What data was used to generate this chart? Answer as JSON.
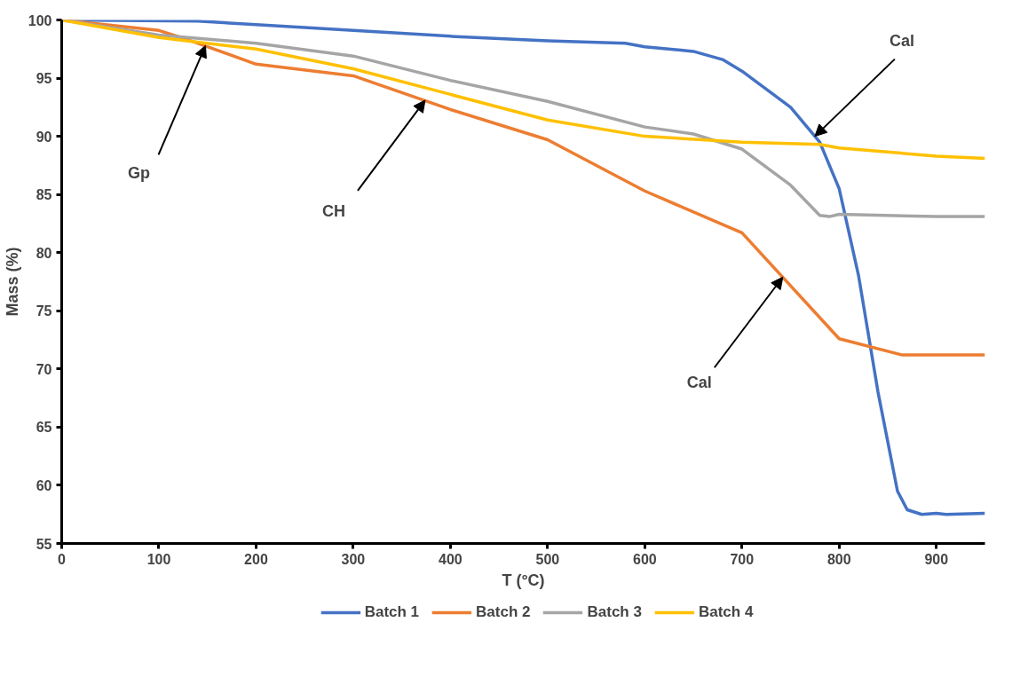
{
  "chart_data": {
    "type": "line",
    "xlabel": "T (°C)",
    "ylabel": "Mass (%)",
    "xlim": [
      0,
      950
    ],
    "ylim": [
      55,
      100
    ],
    "xticks": [
      0,
      100,
      200,
      300,
      400,
      500,
      600,
      700,
      800,
      900
    ],
    "yticks": [
      55,
      60,
      65,
      70,
      75,
      80,
      85,
      90,
      95,
      100
    ],
    "grid": false,
    "legend": "bottom",
    "line_style": "solid",
    "marker": "none",
    "series": [
      {
        "name": "Batch 1",
        "color": "#4472c4",
        "x": [
          0,
          140,
          200,
          300,
          400,
          500,
          580,
          600,
          650,
          680,
          700,
          750,
          780,
          800,
          820,
          840,
          860,
          870,
          885,
          900,
          910,
          950
        ],
        "values": [
          100,
          99.9,
          99.6,
          99.1,
          98.6,
          98.2,
          98.0,
          97.7,
          97.3,
          96.6,
          95.6,
          92.5,
          89.5,
          85.5,
          78,
          68,
          59.5,
          57.9,
          57.5,
          57.6,
          57.5,
          57.6
        ]
      },
      {
        "name": "Batch 2",
        "color": "#ed7d31",
        "x": [
          0,
          100,
          130,
          200,
          300,
          400,
          500,
          600,
          700,
          800,
          865,
          950
        ],
        "values": [
          100,
          99.1,
          98.3,
          96.2,
          95.2,
          92.3,
          89.7,
          85.3,
          81.7,
          72.6,
          71.2,
          71.2
        ]
      },
      {
        "name": "Batch 3",
        "color": "#a5a5a5",
        "x": [
          0,
          100,
          200,
          300,
          400,
          500,
          600,
          650,
          700,
          750,
          780,
          790,
          800,
          900,
          950
        ],
        "values": [
          100,
          98.7,
          98.0,
          96.9,
          94.8,
          93.0,
          90.8,
          90.2,
          88.9,
          85.8,
          83.2,
          83.1,
          83.3,
          83.1,
          83.1
        ]
      },
      {
        "name": "Batch 4",
        "color": "#ffc000",
        "x": [
          0,
          100,
          200,
          300,
          400,
          500,
          600,
          700,
          780,
          800,
          900,
          950
        ],
        "values": [
          100,
          98.5,
          97.5,
          95.8,
          93.6,
          91.4,
          90.0,
          89.5,
          89.3,
          89.0,
          88.3,
          88.1
        ]
      }
    ],
    "annotations": [
      {
        "text": "Gp",
        "x": 148,
        "y": 97.8
      },
      {
        "text": "CH",
        "x": 374,
        "y": 93.1
      },
      {
        "text": "Cal",
        "x": 775,
        "y": 90.0
      },
      {
        "text": "Cal",
        "x": 742,
        "y": 77.9
      }
    ]
  }
}
